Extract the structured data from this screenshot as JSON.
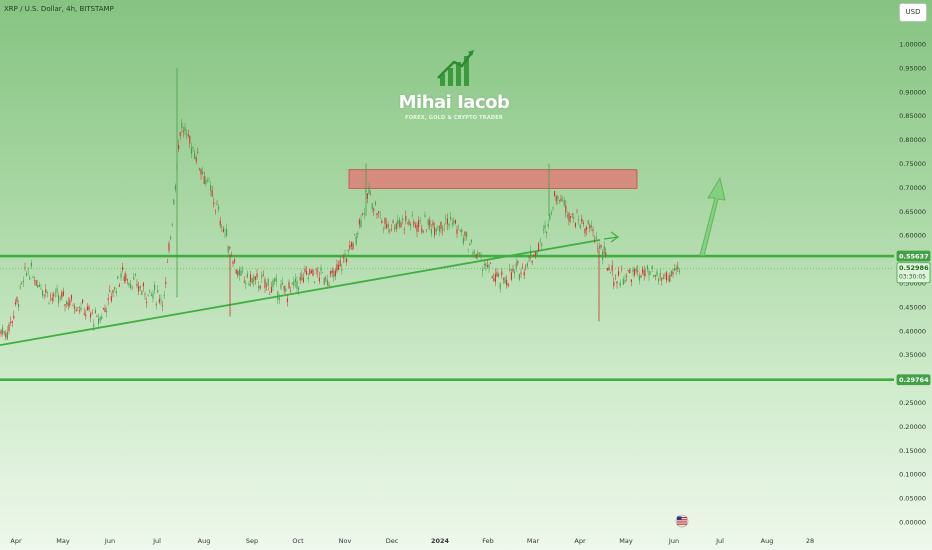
{
  "header": {
    "symbol_title": "XRP / U.S. Dollar, 4h, BITSTAMP",
    "currency_button": "USD"
  },
  "logo": {
    "name": "Mihai Iacob",
    "tagline": "FOREX, GOLD & CRYPTO TRADER"
  },
  "colors": {
    "level_line": "#3fae41",
    "supply_zone_fill": "#e57373",
    "up_candle": "#43a047",
    "down_candle": "#d32f2f",
    "price_tag": "#43a047"
  },
  "chart_data": {
    "type": "candlestick",
    "y_axis_ticks": [
      "1.00000",
      "0.95000",
      "0.90000",
      "0.85000",
      "0.80000",
      "0.75000",
      "0.70000",
      "0.65000",
      "0.60000",
      "0.55000",
      "0.50000",
      "0.45000",
      "0.40000",
      "0.35000",
      "0.30000",
      "0.25000",
      "0.20000",
      "0.15000",
      "0.10000",
      "0.05000",
      "0.00000"
    ],
    "x_axis_ticks": [
      "Apr",
      "May",
      "Jun",
      "Jul",
      "Aug",
      "Sep",
      "Oct",
      "Nov",
      "Dec",
      "2024",
      "Feb",
      "Mar",
      "Apr",
      "May",
      "Jun",
      "Jul",
      "Aug",
      "28"
    ],
    "ylim": [
      0,
      1.05
    ],
    "price_labels": [
      {
        "label": "0.55637",
        "kind": "level"
      },
      {
        "label": "0.52986",
        "kind": "current",
        "countdown": "03:30:05"
      },
      {
        "label": "0.29764",
        "kind": "level"
      }
    ],
    "horizontal_levels": [
      0.55637,
      0.29764
    ],
    "supply_zone": {
      "top": 0.725,
      "bottom": 0.71,
      "from": "Nov",
      "to": "Apr"
    },
    "trendline": {
      "from": {
        "x": "Mar 2023",
        "y": 0.37
      },
      "to": {
        "x": "Apr 2024",
        "y": 0.59
      }
    },
    "projection": "up",
    "price_path": [
      [
        "Mar 2023",
        0.4
      ],
      [
        "Apr 2023",
        0.53
      ],
      [
        "Apr 2023",
        0.47
      ],
      [
        "May 2023",
        0.46
      ],
      [
        "May 2023",
        0.42
      ],
      [
        "Jun 2023",
        0.52
      ],
      [
        "Jun 2023",
        0.48
      ],
      [
        "Jul 2023",
        0.47
      ],
      [
        "Jul 2023",
        0.83
      ],
      [
        "Jul 2023",
        0.77
      ],
      [
        "Aug 2023",
        0.66
      ],
      [
        "Aug 2023",
        0.51
      ],
      [
        "Sep 2023",
        0.5
      ],
      [
        "Sep 2023",
        0.48
      ],
      [
        "Oct 2023",
        0.52
      ],
      [
        "Oct 2023",
        0.51
      ],
      [
        "Nov 2023",
        0.58
      ],
      [
        "Nov 2023",
        0.69
      ],
      [
        "Nov 2023",
        0.62
      ],
      [
        "Dec 2023",
        0.63
      ],
      [
        "Dec 2023",
        0.62
      ],
      [
        "Jan 2024",
        0.63
      ],
      [
        "Jan 2024",
        0.56
      ],
      [
        "Feb 2024",
        0.5
      ],
      [
        "Feb 2024",
        0.53
      ],
      [
        "Mar 2024",
        0.58
      ],
      [
        "Mar 2024",
        0.69
      ],
      [
        "Mar 2024",
        0.64
      ],
      [
        "Apr 2024",
        0.61
      ],
      [
        "Apr 2024",
        0.51
      ],
      [
        "May 2024",
        0.52
      ],
      [
        "May 2024",
        0.51
      ],
      [
        "Jun 2024",
        0.53
      ]
    ]
  }
}
